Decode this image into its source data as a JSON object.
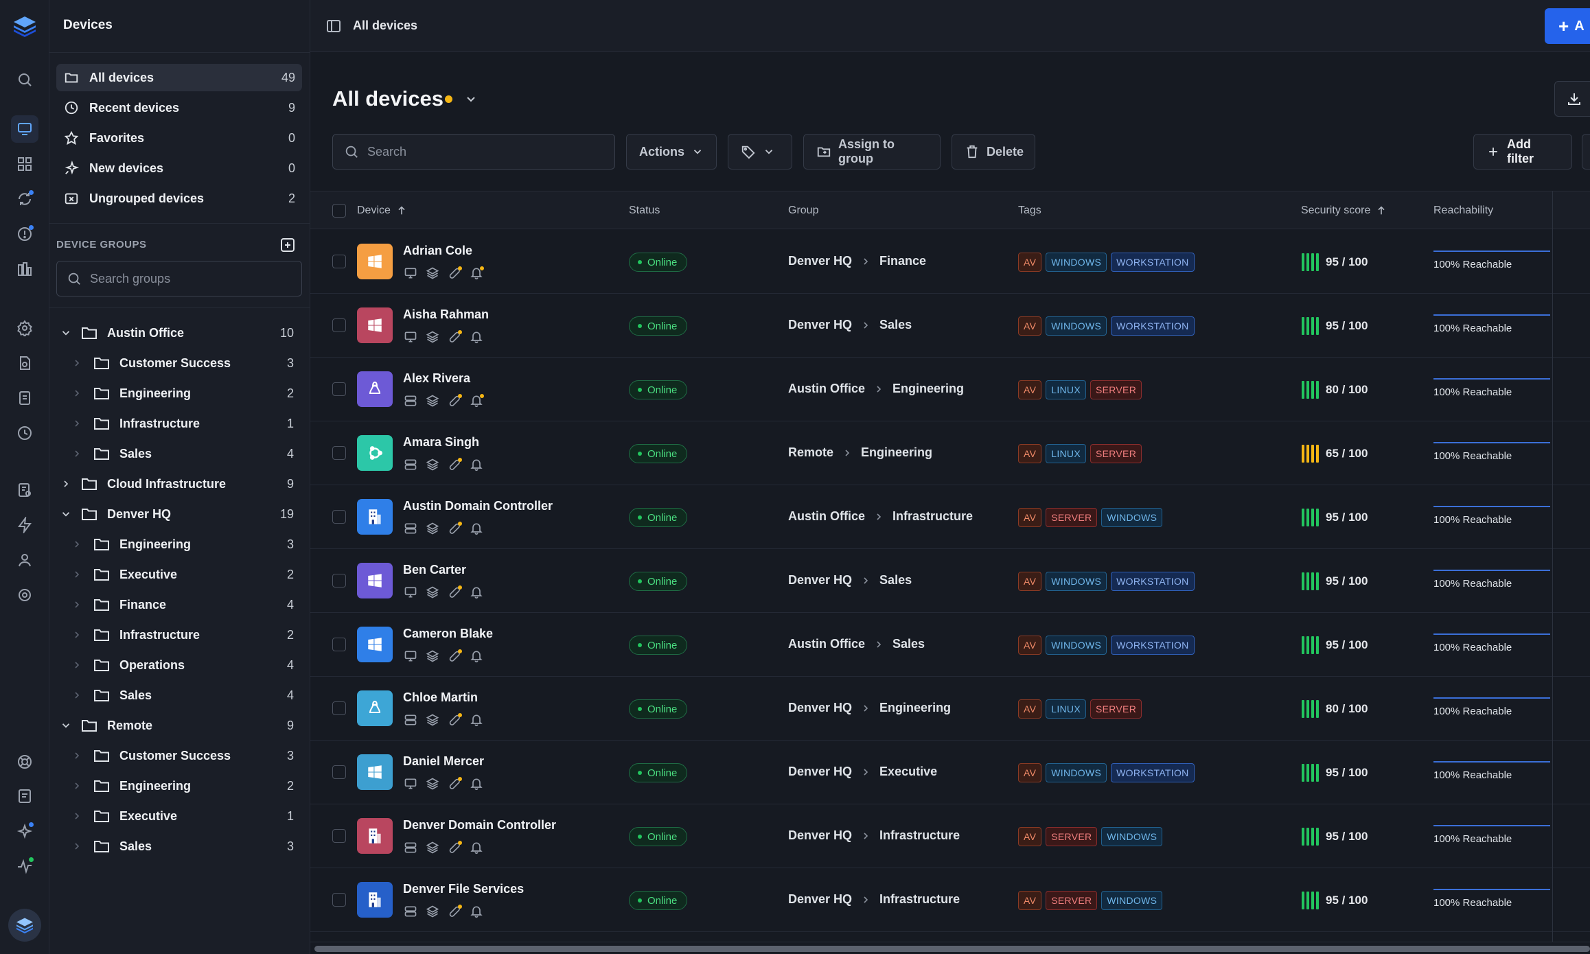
{
  "sidebar": {
    "title": "Devices",
    "nav": [
      {
        "label": "All devices",
        "count": "49",
        "icon": "folder-icon"
      },
      {
        "label": "Recent devices",
        "count": "9",
        "icon": "clock-icon"
      },
      {
        "label": "Favorites",
        "count": "0",
        "icon": "star-icon"
      },
      {
        "label": "New devices",
        "count": "0",
        "icon": "sparkle-icon"
      },
      {
        "label": "Ungrouped devices",
        "count": "2",
        "icon": "folder-x-icon"
      }
    ],
    "groups_heading": "DEVICE GROUPS",
    "search_placeholder": "Search groups",
    "tree": [
      {
        "label": "Austin Office",
        "count": "10",
        "level": 0,
        "expanded": true
      },
      {
        "label": "Customer Success",
        "count": "3",
        "level": 1
      },
      {
        "label": "Engineering",
        "count": "2",
        "level": 1
      },
      {
        "label": "Infrastructure",
        "count": "1",
        "level": 1
      },
      {
        "label": "Sales",
        "count": "4",
        "level": 1
      },
      {
        "label": "Cloud Infrastructure",
        "count": "9",
        "level": 0,
        "expanded": false
      },
      {
        "label": "Denver HQ",
        "count": "19",
        "level": 0,
        "expanded": true
      },
      {
        "label": "Engineering",
        "count": "3",
        "level": 1
      },
      {
        "label": "Executive",
        "count": "2",
        "level": 1
      },
      {
        "label": "Finance",
        "count": "4",
        "level": 1
      },
      {
        "label": "Infrastructure",
        "count": "2",
        "level": 1
      },
      {
        "label": "Operations",
        "count": "4",
        "level": 1
      },
      {
        "label": "Sales",
        "count": "4",
        "level": 1
      },
      {
        "label": "Remote",
        "count": "9",
        "level": 0,
        "expanded": true
      },
      {
        "label": "Customer Success",
        "count": "3",
        "level": 1
      },
      {
        "label": "Engineering",
        "count": "2",
        "level": 1
      },
      {
        "label": "Executive",
        "count": "1",
        "level": 1
      },
      {
        "label": "Sales",
        "count": "3",
        "level": 1
      }
    ]
  },
  "topbar": {
    "title": "All devices",
    "add_label": "A"
  },
  "page": {
    "title": "All devices"
  },
  "toolbar": {
    "search_placeholder": "Search",
    "actions_label": "Actions",
    "assign_label": "Assign to group",
    "delete_label": "Delete",
    "add_filter_label": "Add filter"
  },
  "table": {
    "columns": {
      "device": "Device",
      "status": "Status",
      "group": "Group",
      "tags": "Tags",
      "security": "Security score",
      "reachability": "Reachability"
    },
    "rows": [
      {
        "name": "Adrian Cole",
        "os": "windows",
        "avatar_color": "#f59e42",
        "kind": "desktop",
        "bell_dot": true,
        "status": "Online",
        "group": [
          "Denver HQ",
          "Finance"
        ],
        "tags": [
          "AV",
          "WINDOWS",
          "WORKSTATION"
        ],
        "score": "95 / 100",
        "score_value": 95,
        "reach": "100% Reachable"
      },
      {
        "name": "Aisha Rahman",
        "os": "windows",
        "avatar_color": "#b9465f",
        "kind": "desktop",
        "bell_dot": false,
        "status": "Online",
        "group": [
          "Denver HQ",
          "Sales"
        ],
        "tags": [
          "AV",
          "WINDOWS",
          "WORKSTATION"
        ],
        "score": "95 / 100",
        "score_value": 95,
        "reach": "100% Reachable"
      },
      {
        "name": "Alex Rivera",
        "os": "linux",
        "avatar_color": "#6d5ad6",
        "kind": "server",
        "bell_dot": true,
        "status": "Online",
        "group": [
          "Austin Office",
          "Engineering"
        ],
        "tags": [
          "AV",
          "LINUX",
          "SERVER"
        ],
        "score": "80 / 100",
        "score_value": 80,
        "reach": "100% Reachable"
      },
      {
        "name": "Amara Singh",
        "os": "ubuntu",
        "avatar_color": "#2cc7a8",
        "kind": "server",
        "bell_dot": false,
        "status": "Online",
        "group": [
          "Remote",
          "Engineering"
        ],
        "tags": [
          "AV",
          "LINUX",
          "SERVER"
        ],
        "score": "65 / 100",
        "score_value": 65,
        "reach": "100% Reachable"
      },
      {
        "name": "Austin Domain Controller",
        "os": "building",
        "avatar_color": "#2f7fe8",
        "kind": "server",
        "bell_dot": false,
        "status": "Online",
        "group": [
          "Austin Office",
          "Infrastructure"
        ],
        "tags": [
          "AV",
          "SERVER",
          "WINDOWS"
        ],
        "score": "95 / 100",
        "score_value": 95,
        "reach": "100% Reachable"
      },
      {
        "name": "Ben Carter",
        "os": "windows",
        "avatar_color": "#6d5ad6",
        "kind": "desktop",
        "bell_dot": false,
        "status": "Online",
        "group": [
          "Denver HQ",
          "Sales"
        ],
        "tags": [
          "AV",
          "WINDOWS",
          "WORKSTATION"
        ],
        "score": "95 / 100",
        "score_value": 95,
        "reach": "100% Reachable"
      },
      {
        "name": "Cameron Blake",
        "os": "windows",
        "avatar_color": "#2f7fe8",
        "kind": "desktop",
        "bell_dot": false,
        "status": "Online",
        "group": [
          "Austin Office",
          "Sales"
        ],
        "tags": [
          "AV",
          "WINDOWS",
          "WORKSTATION"
        ],
        "score": "95 / 100",
        "score_value": 95,
        "reach": "100% Reachable"
      },
      {
        "name": "Chloe Martin",
        "os": "linux",
        "avatar_color": "#3da6d6",
        "kind": "server",
        "bell_dot": false,
        "status": "Online",
        "group": [
          "Denver HQ",
          "Engineering"
        ],
        "tags": [
          "AV",
          "LINUX",
          "SERVER"
        ],
        "score": "80 / 100",
        "score_value": 80,
        "reach": "100% Reachable"
      },
      {
        "name": "Daniel Mercer",
        "os": "windows",
        "avatar_color": "#3d9fd0",
        "kind": "desktop",
        "bell_dot": false,
        "status": "Online",
        "group": [
          "Denver HQ",
          "Executive"
        ],
        "tags": [
          "AV",
          "WINDOWS",
          "WORKSTATION"
        ],
        "score": "95 / 100",
        "score_value": 95,
        "reach": "100% Reachable"
      },
      {
        "name": "Denver Domain Controller",
        "os": "building",
        "avatar_color": "#b9465f",
        "kind": "server",
        "bell_dot": false,
        "status": "Online",
        "group": [
          "Denver HQ",
          "Infrastructure"
        ],
        "tags": [
          "AV",
          "SERVER",
          "WINDOWS"
        ],
        "score": "95 / 100",
        "score_value": 95,
        "reach": "100% Reachable"
      },
      {
        "name": "Denver File Services",
        "os": "building",
        "avatar_color": "#2660c9",
        "kind": "server",
        "bell_dot": false,
        "status": "Online",
        "group": [
          "Denver HQ",
          "Infrastructure"
        ],
        "tags": [
          "AV",
          "SERVER",
          "WINDOWS"
        ],
        "score": "95 / 100",
        "score_value": 95,
        "reach": "100% Reachable"
      }
    ]
  },
  "colors": {
    "accent": "#2563eb",
    "online": "#22c55e",
    "score_good": "#22c55e",
    "score_warn": "#f5b614",
    "title_dot": "#f5b614"
  }
}
